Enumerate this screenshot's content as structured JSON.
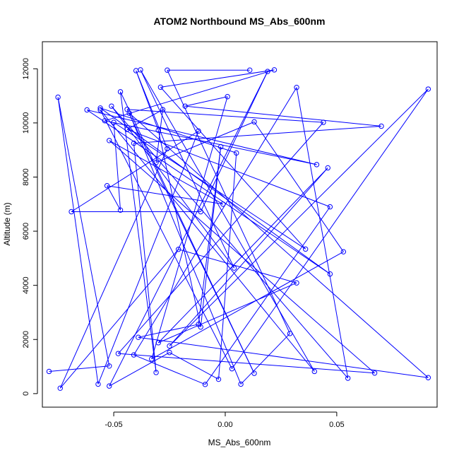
{
  "chart_data": {
    "type": "line",
    "title": "ATOM2 Northbound MS_Abs_600nm",
    "xlabel": "MS_Abs_600nm",
    "ylabel": "Altitude (m)",
    "xlim": [
      -0.082,
      0.095
    ],
    "ylim": [
      -500,
      13000
    ],
    "x_ticks": [
      -0.05,
      0.0,
      0.05
    ],
    "x_tick_labels": [
      "-0.05",
      "0.00",
      "0.05"
    ],
    "y_ticks": [
      0,
      2000,
      4000,
      6000,
      8000,
      10000,
      12000
    ],
    "y_tick_labels": [
      "0",
      "2000",
      "4000",
      "6000",
      "8000",
      "10000",
      "12000"
    ],
    "grid": false,
    "series_color": "#0000ff",
    "marker": "open-circle",
    "points": [
      {
        "x": -0.079,
        "y": 820
      },
      {
        "x": -0.052,
        "y": 1020
      },
      {
        "x": -0.075,
        "y": 10950
      },
      {
        "x": -0.057,
        "y": 350
      },
      {
        "x": -0.012,
        "y": 9700
      },
      {
        "x": -0.069,
        "y": 6720
      },
      {
        "x": -0.011,
        "y": 6720
      },
      {
        "x": 0.019,
        "y": 11900
      },
      {
        "x": -0.052,
        "y": 280
      },
      {
        "x": -0.025,
        "y": 1520
      },
      {
        "x": -0.003,
        "y": 530
      },
      {
        "x": 0.005,
        "y": 8890
      },
      {
        "x": -0.056,
        "y": 10550
      },
      {
        "x": 0.047,
        "y": 4420
      },
      {
        "x": -0.062,
        "y": 10480
      },
      {
        "x": 0.041,
        "y": 8460
      },
      {
        "x": -0.054,
        "y": 10080
      },
      {
        "x": 0.022,
        "y": 11960
      },
      {
        "x": -0.029,
        "y": 11320
      },
      {
        "x": 0.036,
        "y": 5340
      },
      {
        "x": -0.05,
        "y": 10020
      },
      {
        "x": -0.047,
        "y": 6780
      },
      {
        "x": -0.053,
        "y": 7680
      },
      {
        "x": -0.001,
        "y": 7000
      },
      {
        "x": -0.052,
        "y": 9350
      },
      {
        "x": 0.067,
        "y": 760
      },
      {
        "x": -0.048,
        "y": 1480
      },
      {
        "x": 0.044,
        "y": 10020
      },
      {
        "x": -0.044,
        "y": 10500
      },
      {
        "x": 0.013,
        "y": 750
      },
      {
        "x": -0.047,
        "y": 11150
      },
      {
        "x": -0.031,
        "y": 780
      },
      {
        "x": -0.041,
        "y": 9250
      },
      {
        "x": 0.07,
        "y": 9880
      },
      {
        "x": -0.018,
        "y": 10620
      },
      {
        "x": 0.001,
        "y": 10970
      },
      {
        "x": -0.033,
        "y": 1280
      },
      {
        "x": 0.053,
        "y": 5240
      },
      {
        "x": 0.013,
        "y": 10040
      },
      {
        "x": -0.031,
        "y": 8540
      },
      {
        "x": -0.028,
        "y": 10490
      },
      {
        "x": -0.044,
        "y": 9760
      },
      {
        "x": 0.047,
        "y": 6900
      },
      {
        "x": -0.009,
        "y": 340
      },
      {
        "x": -0.041,
        "y": 1430
      },
      {
        "x": 0.032,
        "y": 11310
      },
      {
        "x": 0.055,
        "y": 570
      },
      {
        "x": -0.051,
        "y": 10620
      },
      {
        "x": 0.004,
        "y": 4640
      },
      {
        "x": -0.038,
        "y": 11960
      },
      {
        "x": 0.04,
        "y": 820
      },
      {
        "x": -0.056,
        "y": 10480
      },
      {
        "x": 0.003,
        "y": 920
      },
      {
        "x": 0.091,
        "y": 11250
      },
      {
        "x": -0.025,
        "y": 1760
      },
      {
        "x": 0.046,
        "y": 8340
      },
      {
        "x": -0.03,
        "y": 1880
      },
      {
        "x": 0.032,
        "y": 4090
      },
      {
        "x": -0.021,
        "y": 5330
      },
      {
        "x": -0.074,
        "y": 200
      },
      {
        "x": -0.026,
        "y": 9050
      },
      {
        "x": -0.04,
        "y": 11930
      },
      {
        "x": -0.03,
        "y": 9730
      },
      {
        "x": -0.011,
        "y": 2460
      },
      {
        "x": -0.002,
        "y": 9120
      },
      {
        "x": -0.012,
        "y": 2560
      },
      {
        "x": -0.039,
        "y": 2080
      },
      {
        "x": 0.091,
        "y": 590
      },
      {
        "x": -0.043,
        "y": 10360
      },
      {
        "x": 0.007,
        "y": 350
      },
      {
        "x": 0.029,
        "y": 2220
      },
      {
        "x": -0.026,
        "y": 11950
      },
      {
        "x": 0.011,
        "y": 11950
      }
    ]
  }
}
